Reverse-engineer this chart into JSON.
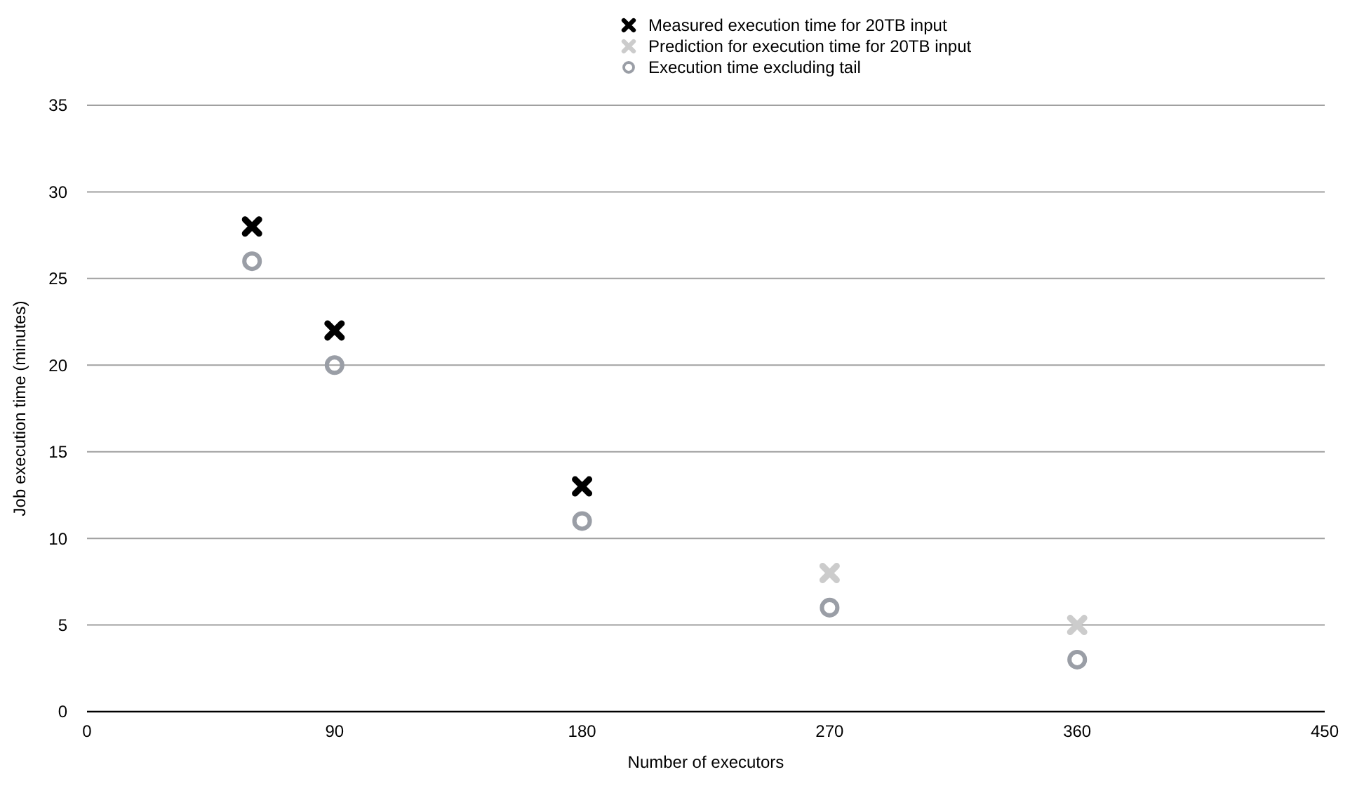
{
  "chart_data": {
    "type": "scatter",
    "xlabel": "Number of executors",
    "ylabel": "Job execution time (minutes)",
    "xlim": [
      0,
      450
    ],
    "xticks": [
      0,
      90,
      180,
      270,
      360,
      450
    ],
    "ylim": [
      0,
      35
    ],
    "yticks": [
      0,
      5,
      10,
      15,
      20,
      25,
      30,
      35
    ],
    "grid": "y",
    "legend": "top",
    "series": [
      {
        "name": "Measured execution time for 20TB input",
        "color": "#000000",
        "marker": "cross",
        "x": [
          60,
          90,
          180
        ],
        "values": [
          28,
          22,
          13
        ]
      },
      {
        "name": "Prediction for execution time for 20TB input",
        "color": "#cccccc",
        "marker": "cross",
        "x": [
          270,
          360
        ],
        "values": [
          8,
          5
        ]
      },
      {
        "name": "Execution time excluding tail",
        "color": "#9a9ea6",
        "marker": "circle",
        "x": [
          60,
          90,
          180,
          270,
          360
        ],
        "values": [
          26,
          20,
          11,
          6,
          3
        ]
      }
    ]
  }
}
